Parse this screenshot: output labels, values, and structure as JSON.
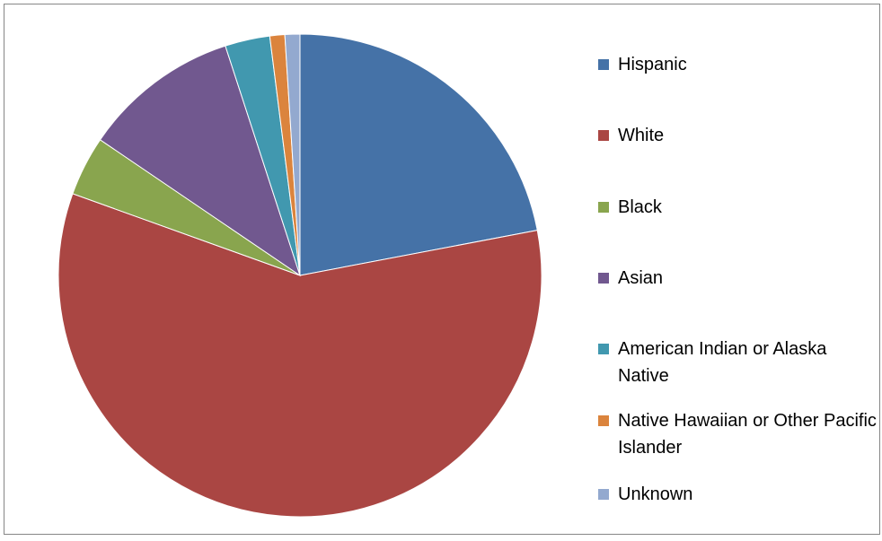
{
  "chart_data": {
    "type": "pie",
    "title": "",
    "series": [
      {
        "values": [
          22.0,
          58.5,
          4.0,
          10.5,
          3.0,
          1.0,
          1.0
        ]
      }
    ],
    "categories": [
      "Hispanic",
      "White",
      "Black",
      "Asian",
      "American Indian or Alaska Native",
      "Native Hawaiian or Other Pacific Islander",
      "Unknown"
    ],
    "colors": [
      "#4572A7",
      "#AA4643",
      "#89A54E",
      "#71588F",
      "#4198AF",
      "#DB843D",
      "#93A9CF"
    ],
    "legend": "right",
    "start_angle": "12 o'clock",
    "direction": "clockwise"
  }
}
